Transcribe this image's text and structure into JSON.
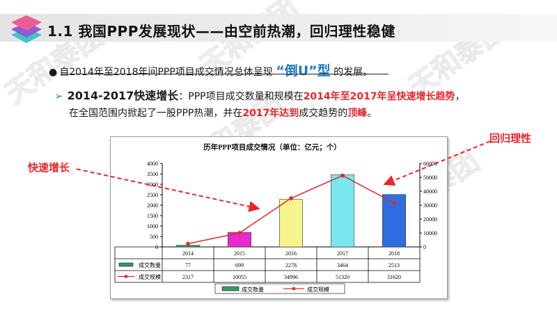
{
  "header": {
    "title": "1.1 我国PPP发展现状——由空前热潮，回归理性稳健"
  },
  "bullet": {
    "marker": "●",
    "text_before": "自2014年至2018年间PPP项目成交情况总体呈现",
    "highlight": "“倒U”型",
    "text_after": "的发展。"
  },
  "point": {
    "marker": "➢",
    "title": "2014-2017快速增长",
    "p1": "：PPP项目成交数量和规模在",
    "p2_red": "2014年至2017年呈快速增长趋势",
    "p3": "，",
    "p4": "在全国范围内掀起了一股PPP热潮，并在",
    "p5_red": "2017年达到",
    "p6": "成交趋势的",
    "p7_red": "顶峰",
    "p8": "。"
  },
  "annotations": {
    "left": "快速增长",
    "right": "回归理性"
  },
  "watermark_text": "天和泰团",
  "colors": {
    "accent_red": "#e8262b",
    "accent_blue": "#1f7ac2",
    "bar_green": "#2e9d66",
    "bar_magenta": "#e62ad0",
    "bar_yellow": "#f6f48c",
    "bar_cyan": "#7be8f0",
    "bar_blue": "#2f6ee0",
    "line_red": "#e6262a"
  },
  "chart_data": {
    "type": "bar",
    "title": "历年PPP项目成交情况（单位：亿元；个）",
    "categories": [
      "2014",
      "2015",
      "2016",
      "2017",
      "2018"
    ],
    "series": [
      {
        "name": "成交数量",
        "type": "bar",
        "axis": "left",
        "values": [
          77,
          699,
          2278,
          3464,
          2513
        ]
      },
      {
        "name": "成交规模",
        "type": "line",
        "axis": "right",
        "values": [
          2317,
          10055,
          34996,
          51320,
          31620
        ]
      }
    ],
    "y_left": {
      "min": 0,
      "max": 4000,
      "ticks": [
        "0",
        "500",
        "1000",
        "1500",
        "2000",
        "2500",
        "3000",
        "3500",
        "4000"
      ]
    },
    "y_right": {
      "min": 0,
      "max": 60000,
      "ticks": [
        "0",
        "10000",
        "20000",
        "30000",
        "40000",
        "50000",
        "60000"
      ]
    },
    "table_rows": [
      {
        "label": "成交数量",
        "cells": [
          "77",
          "699",
          "2278",
          "3464",
          "2513"
        ]
      },
      {
        "label": "成交规模",
        "cells": [
          "2317",
          "10055",
          "34996",
          "51320",
          "31620"
        ]
      }
    ],
    "legend": [
      "成交数量",
      "成交规模"
    ],
    "legend_position": "bottom",
    "grid": false
  }
}
